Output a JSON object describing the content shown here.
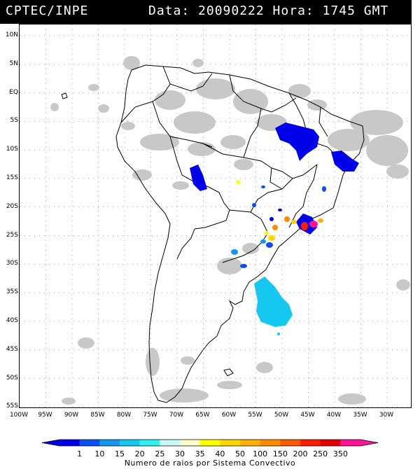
{
  "header": {
    "left": "CPTEC/INPE",
    "right": "Data: 20090222 Hora: 1745 GMT"
  },
  "latitude_labels": [
    "10N",
    "5N",
    "EQ",
    "5S",
    "10S",
    "15S",
    "20S",
    "25S",
    "30S",
    "35S",
    "40S",
    "45S",
    "50S",
    "55S"
  ],
  "longitude_labels": [
    "100W",
    "95W",
    "90W",
    "85W",
    "80W",
    "75W",
    "70W",
    "65W",
    "60W",
    "55W",
    "50W",
    "45W",
    "40W",
    "35W",
    "30W"
  ],
  "legend": {
    "ticks": [
      "1",
      "10",
      "15",
      "20",
      "25",
      "30",
      "35",
      "40",
      "50",
      "100",
      "150",
      "200",
      "250",
      "350"
    ],
    "colors": [
      "#0000e8",
      "#0a50f0",
      "#1496f0",
      "#16c8f0",
      "#30f0f0",
      "#c8fafa",
      "#ffffc8",
      "#ffff00",
      "#ffd700",
      "#ffb000",
      "#ff8c00",
      "#ff5a00",
      "#ff1e00",
      "#e00000",
      "#ff1493"
    ],
    "caption": "Numero de raios por Sistema Convectivo"
  },
  "colors": {
    "cloud": "#c8c8c8",
    "grid": "#a0a0a0",
    "coast": "#000000"
  }
}
